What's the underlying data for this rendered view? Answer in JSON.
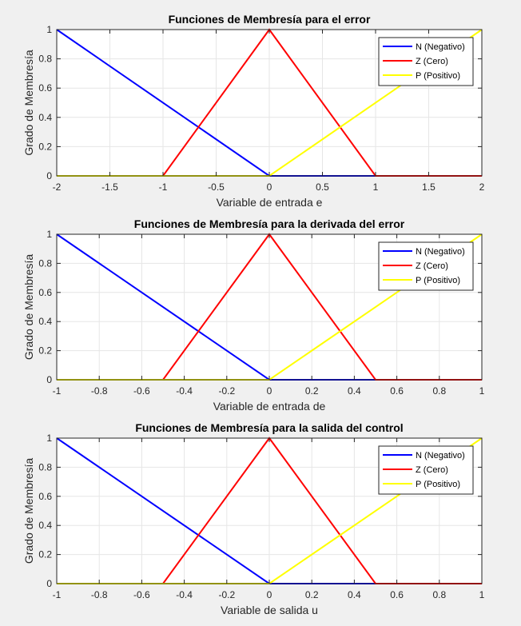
{
  "chart_data": [
    {
      "type": "line",
      "title": "Funciones de Membresía para el error",
      "xlabel": "Variable de entrada e",
      "ylabel": "Grado de Membresía",
      "xlim": [
        -2,
        2
      ],
      "ylim": [
        0,
        1
      ],
      "xticks": [
        "-2",
        "-1.5",
        "-1",
        "-0.5",
        "0",
        "0.5",
        "1",
        "1.5",
        "2"
      ],
      "yticks": [
        "0",
        "0.2",
        "0.4",
        "0.6",
        "0.8",
        "1"
      ],
      "grid": true,
      "legend_position": "top-right",
      "series": [
        {
          "name": "N (Negativo)",
          "color": "#0000ff",
          "points": [
            [
              -2,
              1
            ],
            [
              0,
              0
            ],
            [
              2,
              0
            ]
          ]
        },
        {
          "name": "Z (Cero)",
          "color": "#ff0000",
          "points": [
            [
              -2,
              0
            ],
            [
              -1,
              0
            ],
            [
              0,
              1
            ],
            [
              1,
              0
            ],
            [
              2,
              0
            ]
          ]
        },
        {
          "name": "P (Positivo)",
          "color": "#ffff00",
          "points": [
            [
              -2,
              0
            ],
            [
              0,
              0
            ],
            [
              2,
              1
            ]
          ]
        }
      ]
    },
    {
      "type": "line",
      "title": "Funciones de Membresía para la derivada del error",
      "xlabel": "Variable de entrada de",
      "ylabel": "Grado de Membresía",
      "xlim": [
        -1,
        1
      ],
      "ylim": [
        0,
        1
      ],
      "xticks": [
        "-1",
        "-0.8",
        "-0.6",
        "-0.4",
        "-0.2",
        "0",
        "0.2",
        "0.4",
        "0.6",
        "0.8",
        "1"
      ],
      "yticks": [
        "0",
        "0.2",
        "0.4",
        "0.6",
        "0.8",
        "1"
      ],
      "grid": true,
      "legend_position": "top-right",
      "series": [
        {
          "name": "N (Negativo)",
          "color": "#0000ff",
          "points": [
            [
              -1,
              1
            ],
            [
              0,
              0
            ],
            [
              1,
              0
            ]
          ]
        },
        {
          "name": "Z (Cero)",
          "color": "#ff0000",
          "points": [
            [
              -1,
              0
            ],
            [
              -0.5,
              0
            ],
            [
              0,
              1
            ],
            [
              0.5,
              0
            ],
            [
              1,
              0
            ]
          ]
        },
        {
          "name": "P (Positivo)",
          "color": "#ffff00",
          "points": [
            [
              -1,
              0
            ],
            [
              0,
              0
            ],
            [
              1,
              1
            ]
          ]
        }
      ]
    },
    {
      "type": "line",
      "title": "Funciones de Membresía para la salida del control",
      "xlabel": "Variable de salida u",
      "ylabel": "Grado de Membresía",
      "xlim": [
        -1,
        1
      ],
      "ylim": [
        0,
        1
      ],
      "xticks": [
        "-1",
        "-0.8",
        "-0.6",
        "-0.4",
        "-0.2",
        "0",
        "0.2",
        "0.4",
        "0.6",
        "0.8",
        "1"
      ],
      "yticks": [
        "0",
        "0.2",
        "0.4",
        "0.6",
        "0.8",
        "1"
      ],
      "grid": true,
      "legend_position": "top-right",
      "series": [
        {
          "name": "N (Negativo)",
          "color": "#0000ff",
          "points": [
            [
              -1,
              1
            ],
            [
              0,
              0
            ],
            [
              1,
              0
            ]
          ]
        },
        {
          "name": "Z (Cero)",
          "color": "#ff0000",
          "points": [
            [
              -1,
              0
            ],
            [
              -0.5,
              0
            ],
            [
              0,
              1
            ],
            [
              0.5,
              0
            ],
            [
              1,
              0
            ]
          ]
        },
        {
          "name": "P (Positivo)",
          "color": "#ffff00",
          "points": [
            [
              -1,
              0
            ],
            [
              0,
              0
            ],
            [
              1,
              1
            ]
          ]
        }
      ]
    }
  ]
}
